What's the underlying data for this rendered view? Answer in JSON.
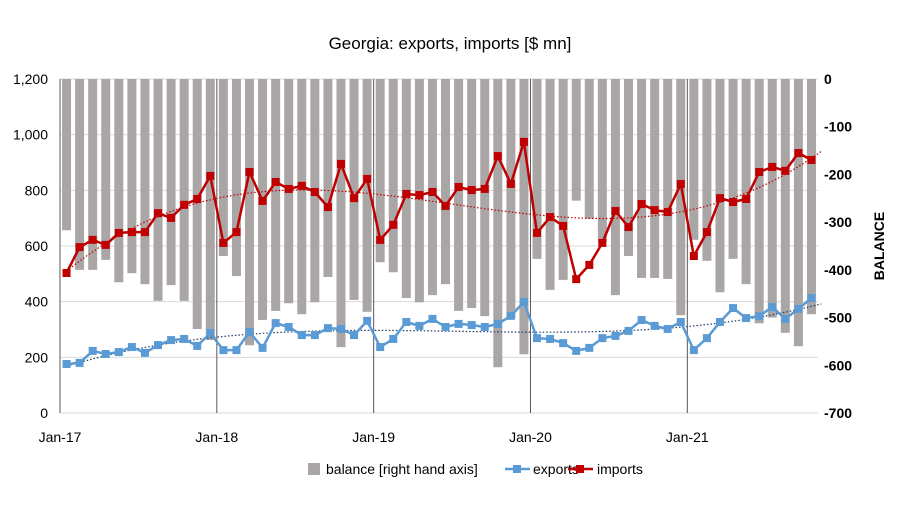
{
  "chart_data": {
    "type": "bar+line",
    "title": "Georgia: exports, imports [$ mn]",
    "y_right_label": "BALANCE",
    "y_left_ticks": [
      "0",
      "200",
      "400",
      "600",
      "800",
      "1,000",
      "1,200"
    ],
    "y_right_ticks": [
      "0",
      "-100",
      "-200",
      "-300",
      "-400",
      "-500",
      "-600",
      "-700"
    ],
    "ylim_left": [
      0,
      1200
    ],
    "ylim_right": [
      -700,
      0
    ],
    "x_tick_labels": [
      "Jan-17",
      "Jan-18",
      "Jan-19",
      "Jan-20",
      "Jan-21"
    ],
    "x_range": "Jan-17 to Oct-21 (monthly)",
    "grid": "horizontal",
    "legend_placement": "bottom",
    "colors": {
      "balance": "#aaa6a6",
      "exports": "#5b9bd5",
      "imports": "#c00000"
    },
    "trendlines": "dotted polynomial trend for exports and imports",
    "series": [
      {
        "name": "balance [right hand axis]",
        "type": "bar",
        "axis": "right",
        "values": [
          -317,
          -400,
          -400,
          -379,
          -426,
          -407,
          -430,
          -465,
          -432,
          -465,
          -524,
          -547,
          -371,
          -413,
          -558,
          -505,
          -486,
          -470,
          -493,
          -468,
          -415,
          -562,
          -463,
          -488,
          -384,
          -405,
          -459,
          -468,
          -453,
          -430,
          -486,
          -480,
          -497,
          -604,
          -501,
          -577,
          -377,
          -442,
          -421,
          -255,
          -293,
          -342,
          -453,
          -371,
          -417,
          -417,
          -419,
          -495,
          -337,
          -381,
          -447,
          -377,
          -430,
          -512,
          -500,
          -532,
          -560,
          -493
        ]
      },
      {
        "name": "exports",
        "type": "line",
        "axis": "left",
        "values": [
          176,
          180,
          223,
          212,
          219,
          237,
          216,
          244,
          262,
          266,
          241,
          287,
          226,
          226,
          291,
          234,
          323,
          309,
          280,
          280,
          305,
          302,
          280,
          331,
          237,
          266,
          327,
          313,
          338,
          309,
          320,
          316,
          309,
          320,
          349,
          399,
          269,
          266,
          251,
          223,
          234,
          269,
          277,
          295,
          334,
          313,
          302,
          327,
          226,
          269,
          327,
          377,
          341,
          348,
          381,
          338,
          374,
          413
        ]
      },
      {
        "name": "imports",
        "type": "line",
        "axis": "left",
        "values": [
          503,
          596,
          622,
          604,
          647,
          650,
          650,
          718,
          701,
          748,
          769,
          852,
          611,
          650,
          866,
          762,
          830,
          805,
          816,
          794,
          740,
          895,
          772,
          841,
          622,
          676,
          787,
          783,
          794,
          744,
          812,
          801,
          805,
          923,
          823,
          974,
          647,
          704,
          672,
          481,
          532,
          611,
          726,
          668,
          751,
          729,
          722,
          823,
          564,
          650,
          772,
          758,
          769,
          866,
          884,
          870,
          934,
          909
        ]
      }
    ]
  }
}
